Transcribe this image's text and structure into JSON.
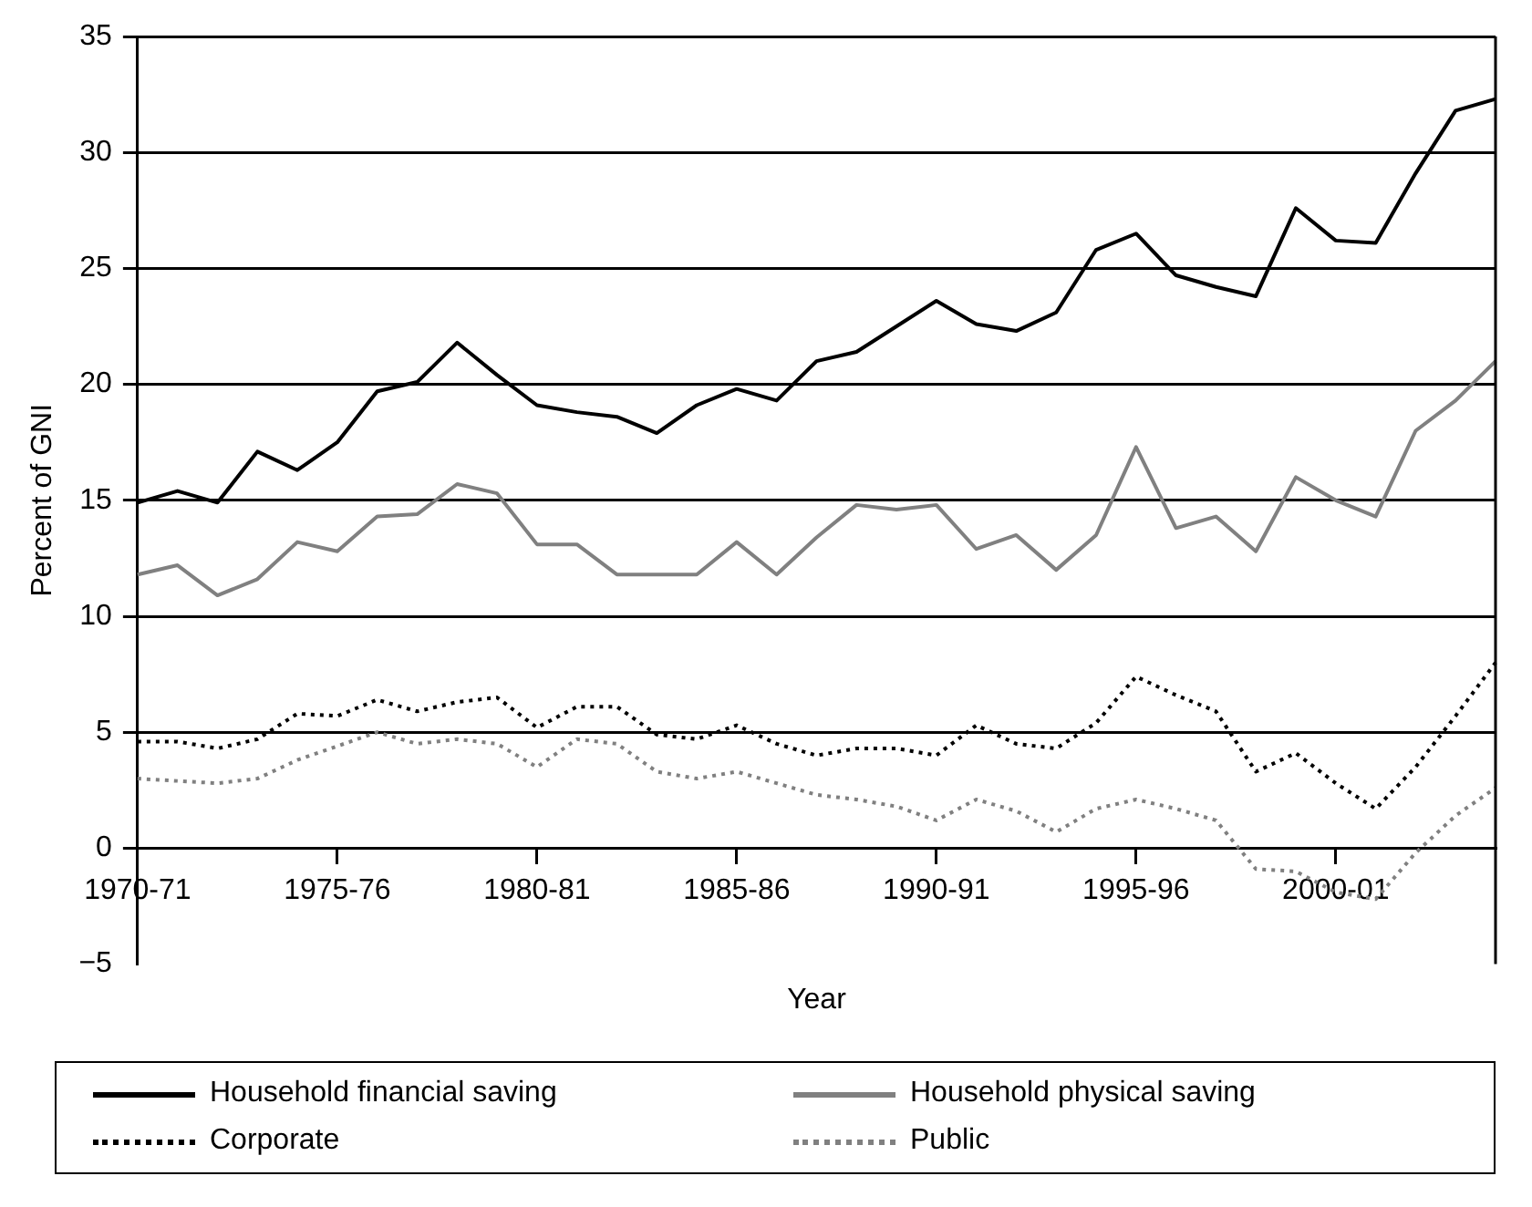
{
  "chart_data": {
    "type": "line",
    "xlabel": "Year",
    "ylabel": "Percent of GNI",
    "categories": [
      "1970-71",
      null,
      null,
      null,
      null,
      "1975-76",
      null,
      null,
      null,
      null,
      "1980-81",
      null,
      null,
      null,
      null,
      "1985-86",
      null,
      null,
      null,
      null,
      "1990-91",
      null,
      null,
      null,
      null,
      "1995-96",
      null,
      null,
      null,
      null,
      "2000-01",
      null,
      null,
      null,
      null
    ],
    "ylim": [
      -5,
      35
    ],
    "yticks": [
      -5,
      0,
      5,
      10,
      15,
      20,
      25,
      30,
      35
    ],
    "grid": "y",
    "legend": "bottom",
    "marker": "none",
    "series": [
      {
        "name": "Household financial saving",
        "color": "#000000",
        "line_style": "solid",
        "values": [
          14.9,
          15.4,
          14.9,
          17.1,
          16.3,
          17.5,
          19.7,
          20.1,
          21.8,
          20.4,
          19.1,
          18.8,
          18.6,
          17.9,
          19.1,
          19.8,
          19.3,
          21.0,
          21.4,
          22.5,
          23.6,
          22.6,
          22.3,
          23.1,
          25.8,
          26.5,
          24.7,
          24.2,
          23.8,
          27.6,
          26.2,
          26.1,
          29.1,
          31.8,
          32.3
        ]
      },
      {
        "name": "Household physical saving",
        "color": "#808080",
        "line_style": "solid",
        "values": [
          11.8,
          12.2,
          10.9,
          11.6,
          13.2,
          12.8,
          14.3,
          14.4,
          15.7,
          15.3,
          13.1,
          13.1,
          11.8,
          11.8,
          11.8,
          13.2,
          11.8,
          13.4,
          14.8,
          14.6,
          14.8,
          12.9,
          13.5,
          12.0,
          13.5,
          17.3,
          13.8,
          14.3,
          12.8,
          16.0,
          15.0,
          14.3,
          18.0,
          19.3,
          21.0
        ]
      },
      {
        "name": "Corporate",
        "color": "#000000",
        "line_style": "dotted",
        "values": [
          4.6,
          4.6,
          4.3,
          4.7,
          5.8,
          5.7,
          6.4,
          5.9,
          6.3,
          6.5,
          5.2,
          6.1,
          6.1,
          4.9,
          4.7,
          5.3,
          4.5,
          4.0,
          4.3,
          4.3,
          4.0,
          5.3,
          4.5,
          4.3,
          5.4,
          7.4,
          6.6,
          5.9,
          3.3,
          4.1,
          2.8,
          1.7,
          3.5,
          5.7,
          8.0
        ]
      },
      {
        "name": "Public",
        "color": "#808080",
        "line_style": "dotted",
        "values": [
          3.0,
          2.9,
          2.8,
          3.0,
          3.8,
          4.4,
          5.0,
          4.5,
          4.7,
          4.5,
          3.5,
          4.7,
          4.5,
          3.3,
          3.0,
          3.3,
          2.8,
          2.3,
          2.1,
          1.8,
          1.2,
          2.1,
          1.6,
          0.7,
          1.7,
          2.1,
          1.7,
          1.2,
          -0.9,
          -1.0,
          -1.9,
          -2.2,
          -0.2,
          1.4,
          2.6
        ]
      }
    ]
  }
}
